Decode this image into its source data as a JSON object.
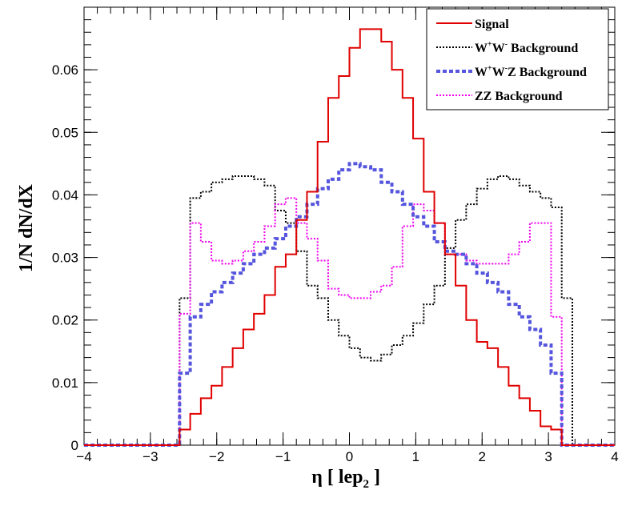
{
  "chart_data": {
    "type": "histogram-step",
    "title": "",
    "xlabel_main": "η [ lep",
    "xlabel_sub": "2",
    "xlabel_close": " ]",
    "ylabel": "1/N dN/dX",
    "xlim": [
      -4,
      4
    ],
    "ylim": [
      0,
      0.07
    ],
    "xticks": [
      -4,
      -3,
      -2,
      -1,
      0,
      1,
      2,
      3,
      4
    ],
    "xtick_labels": [
      "−4",
      "−3",
      "−2",
      "−1",
      "0",
      "1",
      "2",
      "3",
      "4"
    ],
    "yticks": [
      0,
      0.01,
      0.02,
      0.03,
      0.04,
      0.05,
      0.06
    ],
    "ytick_labels": [
      "0",
      "0.01",
      "0.02",
      "0.03",
      "0.04",
      "0.05",
      "0.06"
    ],
    "bins": {
      "start": -4,
      "width": 0.16,
      "count": 50
    },
    "legend_position": "top-right",
    "series": [
      {
        "name": "Signal",
        "legend": [
          {
            "text": "Signal"
          }
        ],
        "color": "#e00000",
        "style": "solid",
        "values": [
          0,
          0,
          0,
          0,
          0,
          0,
          0,
          0,
          0,
          0.0025,
          0.005,
          0.0075,
          0.0095,
          0.0125,
          0.0155,
          0.0185,
          0.021,
          0.024,
          0.0285,
          0.0305,
          0.036,
          0.0405,
          0.0485,
          0.0555,
          0.059,
          0.0635,
          0.0665,
          0.0665,
          0.0645,
          0.06,
          0.0555,
          0.049,
          0.0405,
          0.0355,
          0.0305,
          0.0255,
          0.02,
          0.0165,
          0.0155,
          0.0125,
          0.0095,
          0.0075,
          0.0055,
          0.003,
          0.0025,
          0,
          0,
          0,
          0,
          0
        ]
      },
      {
        "name": "W+W- Background",
        "legend": [
          {
            "text": "W"
          },
          {
            "text": "+",
            "sup": true
          },
          {
            "text": "W"
          },
          {
            "text": "-",
            "sup": true
          },
          {
            "text": " Background"
          }
        ],
        "color": "#000000",
        "style": "dotted",
        "values": [
          0,
          0,
          0,
          0,
          0,
          0,
          0,
          0,
          0,
          0.0235,
          0.0395,
          0.0405,
          0.042,
          0.0425,
          0.043,
          0.043,
          0.0425,
          0.0415,
          0.0375,
          0.0355,
          0.031,
          0.0255,
          0.0235,
          0.02,
          0.0175,
          0.0155,
          0.014,
          0.0135,
          0.0145,
          0.016,
          0.0175,
          0.0195,
          0.0225,
          0.0255,
          0.0315,
          0.036,
          0.0385,
          0.041,
          0.0425,
          0.043,
          0.0425,
          0.0415,
          0.0405,
          0.0395,
          0.038,
          0.0235,
          0,
          0,
          0,
          0
        ]
      },
      {
        "name": "W+W-Z Background",
        "legend": [
          {
            "text": "W"
          },
          {
            "text": "+",
            "sup": true
          },
          {
            "text": "W"
          },
          {
            "text": "-",
            "sup": true
          },
          {
            "text": "Z Background"
          }
        ],
        "color": "#5555dd",
        "style": "dashed",
        "values": [
          0,
          0,
          0,
          0,
          0,
          0,
          0,
          0,
          0,
          0.0115,
          0.0205,
          0.0225,
          0.0245,
          0.026,
          0.0275,
          0.029,
          0.0305,
          0.0315,
          0.033,
          0.035,
          0.0365,
          0.0385,
          0.041,
          0.0425,
          0.044,
          0.045,
          0.0445,
          0.044,
          0.042,
          0.0405,
          0.0385,
          0.0365,
          0.035,
          0.0325,
          0.031,
          0.0305,
          0.029,
          0.0275,
          0.026,
          0.0245,
          0.0225,
          0.0205,
          0.0185,
          0.016,
          0.0115,
          0,
          0,
          0,
          0,
          0
        ]
      },
      {
        "name": "ZZ Background",
        "legend": [
          {
            "text": "ZZ Background"
          }
        ],
        "color": "#ee00ee",
        "style": "dotted",
        "values": [
          0,
          0,
          0,
          0,
          0,
          0,
          0,
          0,
          0,
          0.021,
          0.0355,
          0.0325,
          0.0295,
          0.029,
          0.0295,
          0.031,
          0.0325,
          0.035,
          0.0385,
          0.0395,
          0.0355,
          0.033,
          0.0295,
          0.025,
          0.024,
          0.0235,
          0.0235,
          0.0245,
          0.0255,
          0.0285,
          0.035,
          0.0385,
          0.0375,
          0.0355,
          0.0305,
          0.0305,
          0.0295,
          0.029,
          0.029,
          0.029,
          0.0305,
          0.0325,
          0.0355,
          0.0355,
          0.0205,
          0,
          0,
          0,
          0,
          0
        ]
      }
    ]
  }
}
